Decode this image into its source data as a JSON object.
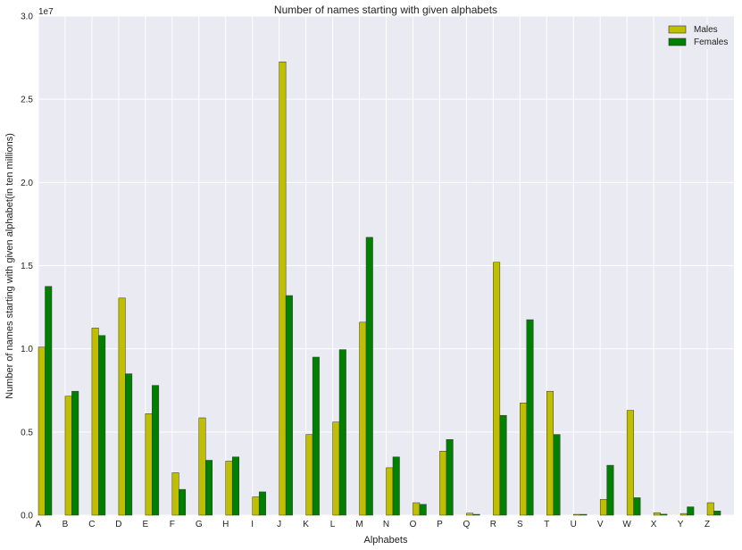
{
  "chart_data": {
    "type": "bar",
    "title": "Number of names starting with given alphabets",
    "xlabel": "Alphabets",
    "ylabel": "Number of names starting with given alphabet(in ten millions)",
    "y_offset_label": "1e7",
    "ylim": [
      0,
      30000000
    ],
    "y_ticks": [
      0,
      5000000,
      10000000,
      15000000,
      20000000,
      25000000,
      30000000
    ],
    "y_tick_labels": [
      "0.0",
      "0.5",
      "1.0",
      "1.5",
      "2.0",
      "2.5",
      "3.0"
    ],
    "grid": true,
    "legend_position": "top-right",
    "categories": [
      "A",
      "B",
      "C",
      "D",
      "E",
      "F",
      "G",
      "H",
      "I",
      "J",
      "K",
      "L",
      "M",
      "N",
      "O",
      "P",
      "Q",
      "R",
      "S",
      "T",
      "U",
      "V",
      "W",
      "X",
      "Y",
      "Z"
    ],
    "series": [
      {
        "name": "Males",
        "color": "#bfbf00",
        "values": [
          10100000,
          7150000,
          11250000,
          13050000,
          6100000,
          2550000,
          5850000,
          3250000,
          1100000,
          27250000,
          4850000,
          5600000,
          11600000,
          2850000,
          750000,
          3850000,
          120000,
          15200000,
          6750000,
          7450000,
          50000,
          950000,
          6300000,
          150000,
          100000,
          750000
        ]
      },
      {
        "name": "Females",
        "color": "#008000",
        "values": [
          13750000,
          7450000,
          10800000,
          8500000,
          7800000,
          1550000,
          3300000,
          3500000,
          1400000,
          13200000,
          9500000,
          9950000,
          16700000,
          3500000,
          650000,
          4550000,
          50000,
          6000000,
          11750000,
          4850000,
          50000,
          3000000,
          1050000,
          60000,
          500000,
          250000
        ]
      }
    ]
  }
}
